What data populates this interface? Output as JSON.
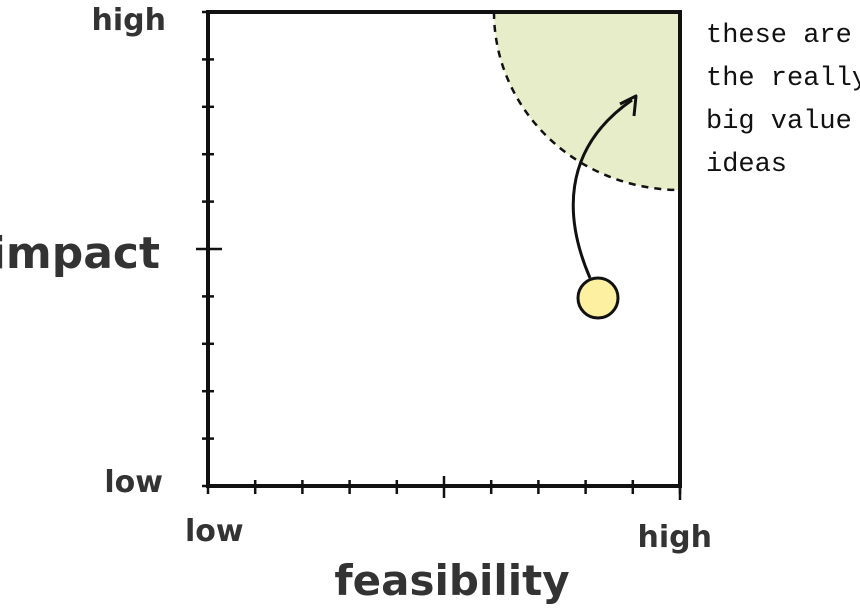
{
  "y_axis": {
    "high": "high",
    "label": "impact",
    "low": "low"
  },
  "x_axis": {
    "low": "low",
    "high": "high",
    "label": "feasibility"
  },
  "annotation": {
    "lines": [
      "these are",
      "the really",
      "big value",
      "ideas"
    ]
  }
}
